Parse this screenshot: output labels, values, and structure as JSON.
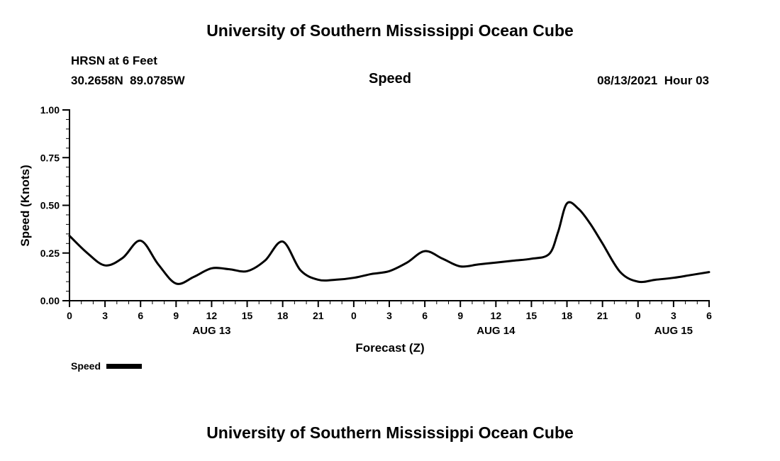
{
  "page": {
    "top_title": "University of Southern Mississippi Ocean Cube",
    "bottom_title": "University of Southern Mississippi Ocean Cube"
  },
  "header": {
    "station": "HRSN at 6 Feet",
    "coordinates": "30.2658N  89.0785W",
    "chart_title": "Speed",
    "datetime": "08/13/2021  Hour 03"
  },
  "chart_data": {
    "type": "line",
    "title": "Speed",
    "xlabel": "Forecast (Z)",
    "ylabel": "Speed (Knots)",
    "xlim": [
      0,
      54
    ],
    "ylim": [
      0.0,
      1.0
    ],
    "grid": false,
    "line_color": "#000000",
    "x_hours": [
      0,
      1.5,
      3,
      4.5,
      6,
      7.5,
      9,
      10.5,
      12,
      13.5,
      15,
      16.5,
      18,
      19.5,
      21,
      22.5,
      24,
      25.5,
      27,
      28.5,
      30,
      31.5,
      33,
      34.5,
      36,
      37.5,
      39,
      40.5,
      41.25,
      42,
      43,
      44,
      45,
      46.5,
      48,
      49.5,
      51,
      52.5,
      54
    ],
    "values": [
      0.34,
      0.25,
      0.185,
      0.225,
      0.315,
      0.19,
      0.09,
      0.125,
      0.17,
      0.165,
      0.155,
      0.21,
      0.31,
      0.16,
      0.11,
      0.11,
      0.12,
      0.14,
      0.155,
      0.2,
      0.26,
      0.22,
      0.18,
      0.19,
      0.2,
      0.21,
      0.22,
      0.245,
      0.36,
      0.51,
      0.48,
      0.4,
      0.3,
      0.15,
      0.1,
      0.11,
      0.12,
      0.135,
      0.15
    ],
    "y_ticks": [
      0.0,
      0.25,
      0.5,
      0.75,
      1.0
    ],
    "y_tick_labels": [
      "0.00",
      "0.25",
      "0.50",
      "0.75",
      "1.00"
    ],
    "y_minor_step": 0.05,
    "x_tick_hours": [
      0,
      3,
      6,
      9,
      12,
      15,
      18,
      21,
      24,
      27,
      30,
      33,
      36,
      39,
      42,
      45,
      48,
      51,
      54
    ],
    "x_tick_labels": [
      "0",
      "3",
      "6",
      "9",
      "12",
      "15",
      "18",
      "21",
      "0",
      "3",
      "6",
      "9",
      "12",
      "15",
      "18",
      "21",
      "0",
      "3",
      "6"
    ],
    "x_minor_step": 1,
    "date_labels": [
      {
        "label": "AUG 13",
        "hour": 12
      },
      {
        "label": "AUG 14",
        "hour": 36
      },
      {
        "label": "AUG 15",
        "hour": 51
      }
    ],
    "legend": [
      {
        "label": "Speed",
        "color": "#000000"
      }
    ]
  }
}
